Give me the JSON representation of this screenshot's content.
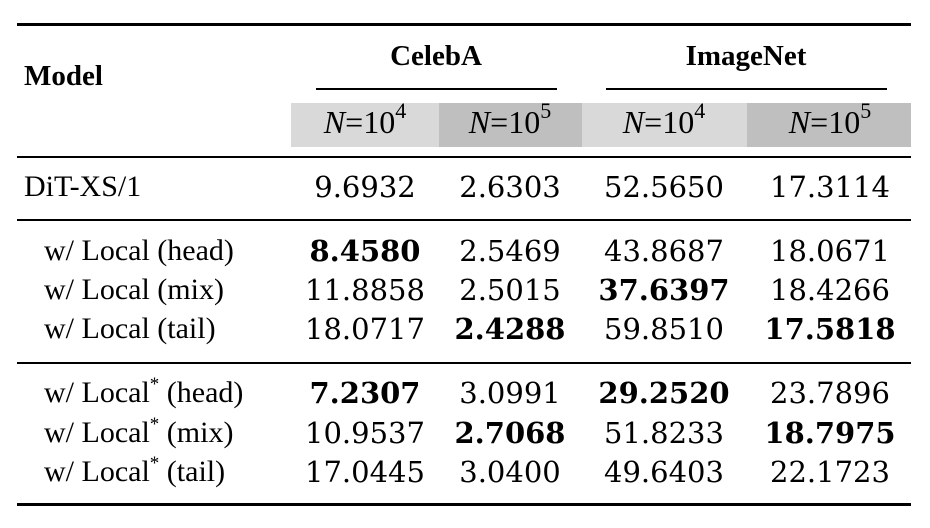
{
  "header": {
    "model_label": "Model",
    "groups": [
      "CelebA",
      "ImageNet"
    ],
    "sub_columns": [
      {
        "var": "N",
        "eq": "=10",
        "exp": "4"
      },
      {
        "var": "N",
        "eq": "=10",
        "exp": "5"
      },
      {
        "var": "N",
        "eq": "=10",
        "exp": "4"
      },
      {
        "var": "N",
        "eq": "=10",
        "exp": "5"
      }
    ]
  },
  "rows": [
    {
      "label": "DiT-XS/1",
      "sup": "",
      "suffix": "",
      "values": [
        "9.6932",
        "2.6303",
        "52.5650",
        "17.3114"
      ],
      "bold": [
        false,
        false,
        false,
        false
      ]
    },
    {
      "label": "w/ Local (head)",
      "sup": "",
      "suffix": "",
      "values": [
        "8.4580",
        "2.5469",
        "43.8687",
        "18.0671"
      ],
      "bold": [
        true,
        false,
        false,
        false
      ]
    },
    {
      "label": "w/ Local (mix)",
      "sup": "",
      "suffix": "",
      "values": [
        "11.8858",
        "2.5015",
        "37.6397",
        "18.4266"
      ],
      "bold": [
        false,
        false,
        true,
        false
      ]
    },
    {
      "label": "w/ Local (tail)",
      "sup": "",
      "suffix": "",
      "values": [
        "18.0717",
        "2.4288",
        "59.8510",
        "17.5818"
      ],
      "bold": [
        false,
        true,
        false,
        true
      ]
    },
    {
      "label": "w/ Local",
      "sup": "*",
      "suffix": " (head)",
      "values": [
        "7.2307",
        "3.0991",
        "29.2520",
        "23.7896"
      ],
      "bold": [
        true,
        false,
        true,
        false
      ]
    },
    {
      "label": "w/ Local",
      "sup": "*",
      "suffix": " (mix)",
      "values": [
        "10.9537",
        "2.7068",
        "51.8233",
        "18.7975"
      ],
      "bold": [
        false,
        true,
        false,
        true
      ]
    },
    {
      "label": "w/ Local",
      "sup": "*",
      "suffix": " (tail)",
      "values": [
        "17.0445",
        "3.0400",
        "49.6403",
        "22.1723"
      ],
      "bold": [
        false,
        false,
        false,
        false
      ]
    }
  ]
}
